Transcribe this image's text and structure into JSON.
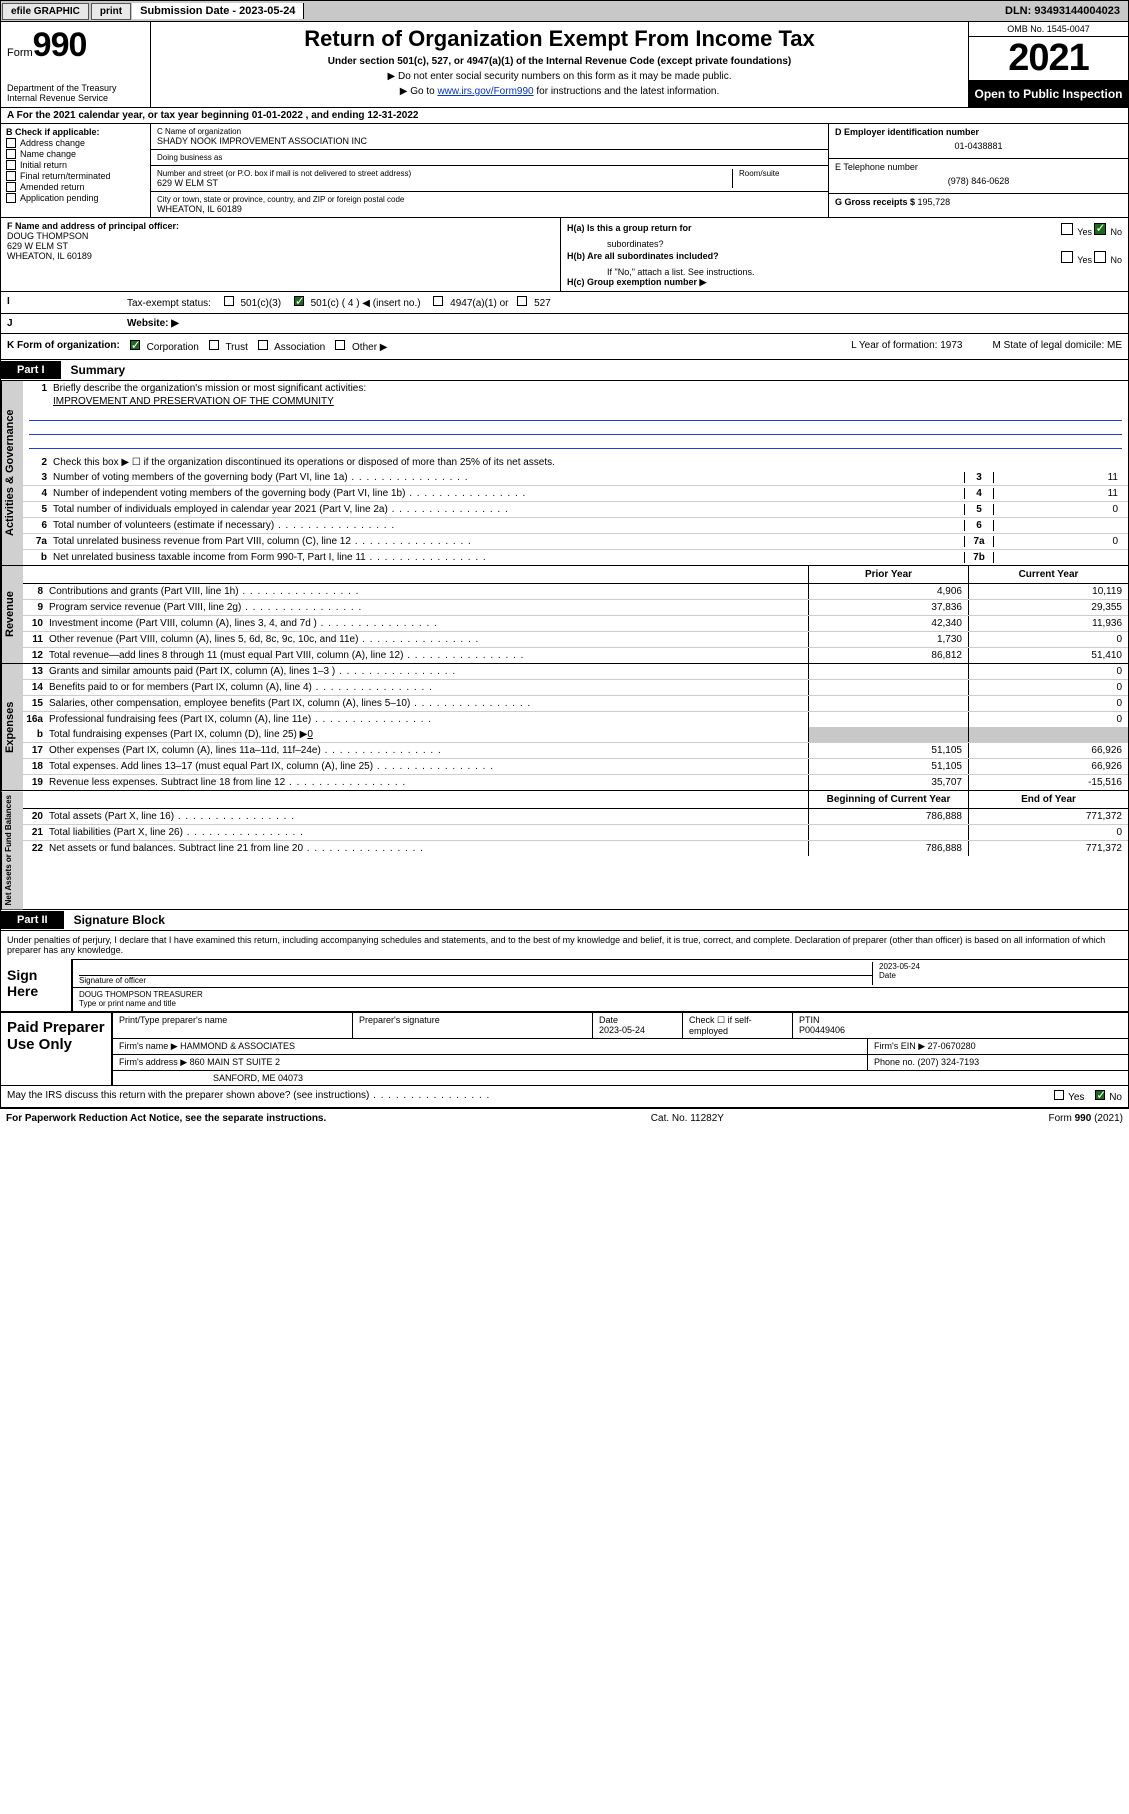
{
  "topbar": {
    "efile": "efile GRAPHIC",
    "print": "print",
    "sub_label": "Submission Date - ",
    "sub_date": "2023-05-24",
    "dln_label": "DLN: ",
    "dln": "93493144004023"
  },
  "header": {
    "form_word": "Form",
    "form_num": "990",
    "dept": "Department of the Treasury",
    "irs": "Internal Revenue Service",
    "title": "Return of Organization Exempt From Income Tax",
    "subtitle": "Under section 501(c), 527, or 4947(a)(1) of the Internal Revenue Code (except private foundations)",
    "inst1": "▶ Do not enter social security numbers on this form as it may be made public.",
    "inst2_pre": "▶ Go to ",
    "inst2_link": "www.irs.gov/Form990",
    "inst2_post": " for instructions and the latest information.",
    "omb": "OMB No. 1545-0047",
    "year": "2021",
    "open": "Open to Public Inspection"
  },
  "row_a": "A For the 2021 calendar year, or tax year beginning 01-01-2022   , and ending 12-31-2022",
  "box_b": {
    "label": "B Check if applicable:",
    "items": [
      "Address change",
      "Name change",
      "Initial return",
      "Final return/terminated",
      "Amended return",
      "Application pending"
    ]
  },
  "box_c": {
    "name_label": "C Name of organization",
    "name": "SHADY NOOK IMPROVEMENT ASSOCIATION INC",
    "dba_label": "Doing business as",
    "dba": "",
    "street_label": "Number and street (or P.O. box if mail is not delivered to street address)",
    "room_label": "Room/suite",
    "street": "629 W ELM ST",
    "city_label": "City or town, state or province, country, and ZIP or foreign postal code",
    "city": "WHEATON, IL  60189"
  },
  "box_d": {
    "ein_label": "D Employer identification number",
    "ein": "01-0438881",
    "phone_label": "E Telephone number",
    "phone": "(978) 846-0628",
    "gross_label": "G Gross receipts $ ",
    "gross": "195,728"
  },
  "box_f": {
    "label": "F  Name and address of principal officer:",
    "name": "DOUG THOMPSON",
    "street": "629 W ELM ST",
    "city": "WHEATON, IL  60189"
  },
  "box_h": {
    "ha": "H(a)  Is this a group return for",
    "ha2": "subordinates?",
    "hb": "H(b)  Are all subordinates included?",
    "hb_note": "If \"No,\" attach a list. See instructions.",
    "hc": "H(c)  Group exemption number ▶",
    "yes": "Yes",
    "no": "No"
  },
  "row_i": {
    "label": "Tax-exempt status:",
    "opts": [
      "501(c)(3)",
      "501(c) ( 4 ) ◀ (insert no.)",
      "4947(a)(1) or",
      "527"
    ]
  },
  "row_j": {
    "label": "Website: ▶",
    "value": ""
  },
  "row_k": {
    "label": "K Form of organization:",
    "opts": [
      "Corporation",
      "Trust",
      "Association",
      "Other ▶"
    ],
    "l": "L Year of formation: 1973",
    "m": "M State of legal domicile: ME"
  },
  "part1": {
    "tab": "Part I",
    "title": "Summary"
  },
  "activities": {
    "vtab": "Activities & Governance",
    "l1": "Briefly describe the organization's mission or most significant activities:",
    "l1_val": "IMPROVEMENT AND PRESERVATION OF THE COMMUNITY",
    "l2": "Check this box ▶ ☐  if the organization discontinued its operations or disposed of more than 25% of its net assets.",
    "rows": [
      {
        "n": "3",
        "t": "Number of voting members of the governing body (Part VI, line 1a)",
        "b": "3",
        "v": "11"
      },
      {
        "n": "4",
        "t": "Number of independent voting members of the governing body (Part VI, line 1b)",
        "b": "4",
        "v": "11"
      },
      {
        "n": "5",
        "t": "Total number of individuals employed in calendar year 2021 (Part V, line 2a)",
        "b": "5",
        "v": "0"
      },
      {
        "n": "6",
        "t": "Total number of volunteers (estimate if necessary)",
        "b": "6",
        "v": ""
      },
      {
        "n": "7a",
        "t": "Total unrelated business revenue from Part VIII, column (C), line 12",
        "b": "7a",
        "v": "0"
      },
      {
        "n": "b",
        "t": "Net unrelated business taxable income from Form 990-T, Part I, line 11",
        "b": "7b",
        "v": ""
      }
    ]
  },
  "twocol_headers": {
    "prior": "Prior Year",
    "current": "Current Year",
    "begin": "Beginning of Current Year",
    "end": "End of Year"
  },
  "revenue": {
    "vtab": "Revenue",
    "rows": [
      {
        "n": "8",
        "t": "Contributions and grants (Part VIII, line 1h)",
        "p": "4,906",
        "c": "10,119"
      },
      {
        "n": "9",
        "t": "Program service revenue (Part VIII, line 2g)",
        "p": "37,836",
        "c": "29,355"
      },
      {
        "n": "10",
        "t": "Investment income (Part VIII, column (A), lines 3, 4, and 7d )",
        "p": "42,340",
        "c": "11,936"
      },
      {
        "n": "11",
        "t": "Other revenue (Part VIII, column (A), lines 5, 6d, 8c, 9c, 10c, and 11e)",
        "p": "1,730",
        "c": "0"
      },
      {
        "n": "12",
        "t": "Total revenue—add lines 8 through 11 (must equal Part VIII, column (A), line 12)",
        "p": "86,812",
        "c": "51,410"
      }
    ]
  },
  "expenses": {
    "vtab": "Expenses",
    "rows": [
      {
        "n": "13",
        "t": "Grants and similar amounts paid (Part IX, column (A), lines 1–3 )",
        "p": "",
        "c": "0"
      },
      {
        "n": "14",
        "t": "Benefits paid to or for members (Part IX, column (A), line 4)",
        "p": "",
        "c": "0"
      },
      {
        "n": "15",
        "t": "Salaries, other compensation, employee benefits (Part IX, column (A), lines 5–10)",
        "p": "",
        "c": "0"
      },
      {
        "n": "16a",
        "t": "Professional fundraising fees (Part IX, column (A), line 11e)",
        "p": "",
        "c": "0"
      }
    ],
    "l16b_pre": "Total fundraising expenses (Part IX, column (D), line 25) ▶",
    "l16b_val": "0",
    "rows2": [
      {
        "n": "17",
        "t": "Other expenses (Part IX, column (A), lines 11a–11d, 11f–24e)",
        "p": "51,105",
        "c": "66,926"
      },
      {
        "n": "18",
        "t": "Total expenses. Add lines 13–17 (must equal Part IX, column (A), line 25)",
        "p": "51,105",
        "c": "66,926"
      },
      {
        "n": "19",
        "t": "Revenue less expenses. Subtract line 18 from line 12",
        "p": "35,707",
        "c": "-15,516"
      }
    ]
  },
  "netassets": {
    "vtab": "Net Assets or Fund Balances",
    "rows": [
      {
        "n": "20",
        "t": "Total assets (Part X, line 16)",
        "p": "786,888",
        "c": "771,372"
      },
      {
        "n": "21",
        "t": "Total liabilities (Part X, line 26)",
        "p": "",
        "c": "0"
      },
      {
        "n": "22",
        "t": "Net assets or fund balances. Subtract line 21 from line 20",
        "p": "786,888",
        "c": "771,372"
      }
    ]
  },
  "part2": {
    "tab": "Part II",
    "title": "Signature Block"
  },
  "sig": {
    "penalty": "Under penalties of perjury, I declare that I have examined this return, including accompanying schedules and statements, and to the best of my knowledge and belief, it is true, correct, and complete. Declaration of preparer (other than officer) is based on all information of which preparer has any knowledge.",
    "sign_here": "Sign Here",
    "sig_officer": "Signature of officer",
    "sig_date": "2023-05-24",
    "date_lbl": "Date",
    "name_title": "DOUG THOMPSON  TREASURER",
    "name_title_lbl": "Type or print name and title"
  },
  "preparer": {
    "label": "Paid Preparer Use Only",
    "h1": "Print/Type preparer's name",
    "h2": "Preparer's signature",
    "h3_lbl": "Date",
    "h3": "2023-05-24",
    "h4_lbl": "Check ☐ if self-employed",
    "h5_lbl": "PTIN",
    "h5": "P00449406",
    "firm_name_lbl": "Firm's name    ▶ ",
    "firm_name": "HAMMOND & ASSOCIATES",
    "firm_ein_lbl": "Firm's EIN ▶ ",
    "firm_ein": "27-0670280",
    "firm_addr_lbl": "Firm's address ▶ ",
    "firm_addr1": "860 MAIN ST SUITE 2",
    "firm_addr2": "SANFORD, ME  04073",
    "phone_lbl": "Phone no. ",
    "phone": "(207) 324-7193"
  },
  "discuss": {
    "text": "May the IRS discuss this return with the preparer shown above? (see instructions)",
    "yes": "Yes",
    "no": "No"
  },
  "footer": {
    "left": "For Paperwork Reduction Act Notice, see the separate instructions.",
    "mid": "Cat. No. 11282Y",
    "right": "Form 990 (2021)"
  }
}
